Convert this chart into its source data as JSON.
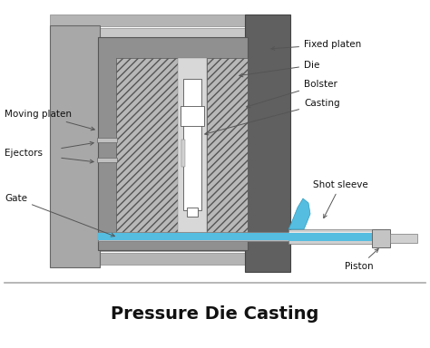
{
  "title": "Pressure Die Casting",
  "title_fontsize": 14,
  "title_fontweight": "bold",
  "bg_color": "#ffffff",
  "labels": {
    "fixed_platen": "Fixed platen",
    "die": "Die",
    "bolster": "Bolster",
    "casting": "Casting",
    "moving_platen": "Moving platen",
    "ejectors": "Ejectors",
    "gate": "Gate",
    "shot_sleeve": "Shot sleeve",
    "piston": "Piston"
  },
  "colors": {
    "light_gray": "#c8c8c8",
    "mid_gray": "#a8a8a8",
    "bolster_gray": "#909090",
    "dark_gray": "#686868",
    "fixed_platen_dark": "#606060",
    "hatch_fc": "#b8b8b8",
    "white_cast": "#ffffff",
    "blue_fluid": "#55bde0",
    "blue_dark": "#2a9abf",
    "ejector_gray": "#c0c0c0",
    "tie_rod": "#b4b4b4",
    "runner_gray": "#b8b8b8",
    "sleeve_gray": "#d0d0d0",
    "piston_gray": "#c4c4c4",
    "line_color": "#555555",
    "arrow_color": "#666666"
  }
}
